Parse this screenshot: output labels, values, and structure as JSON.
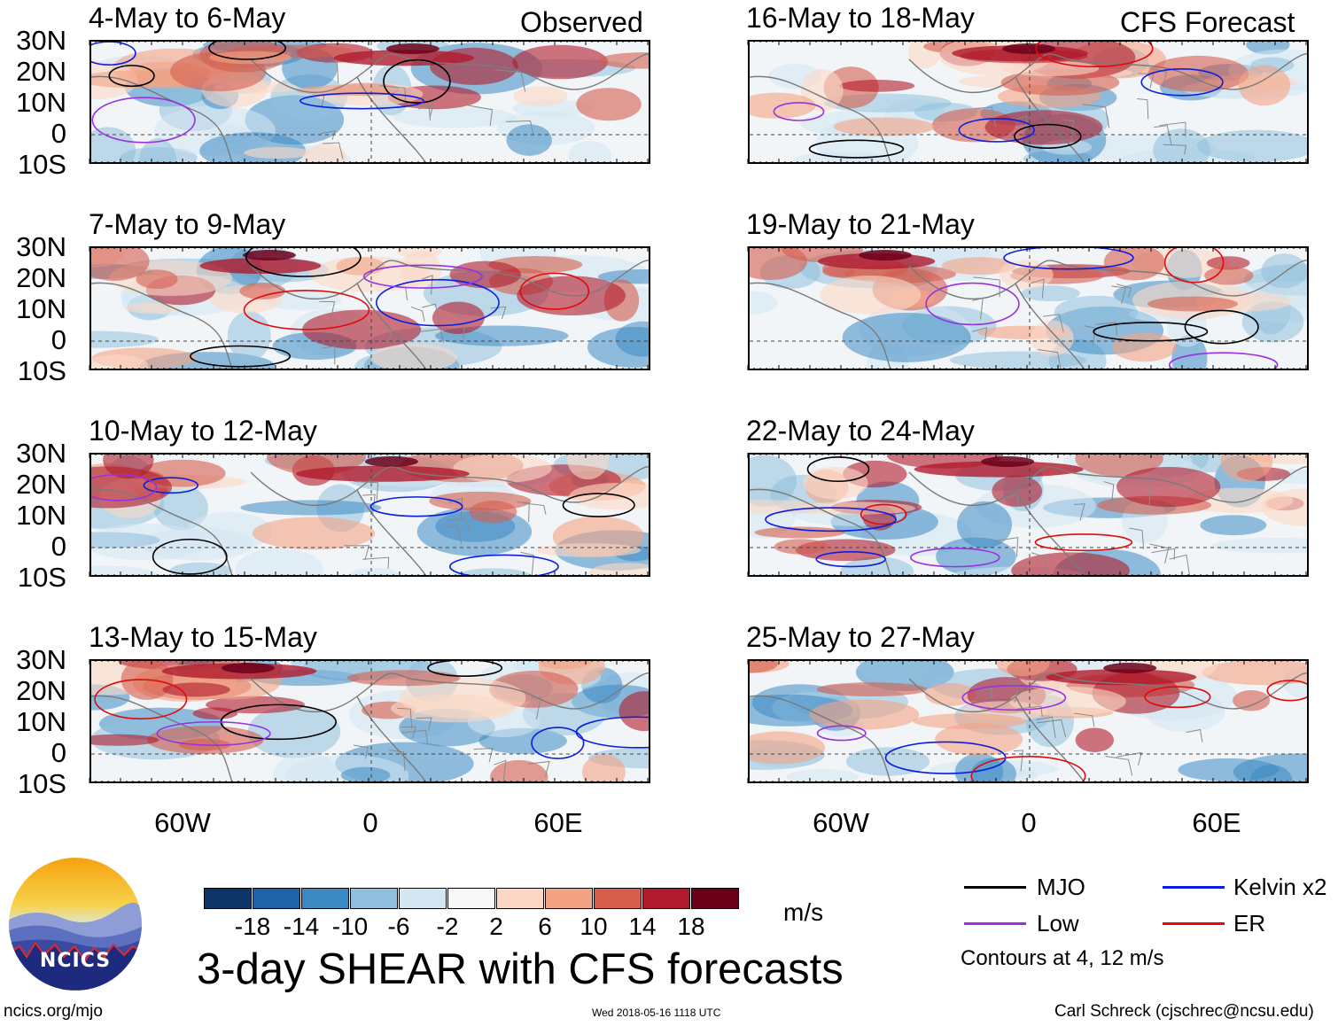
{
  "header": {
    "left_label": "Observed",
    "right_label": "CFS Forecast"
  },
  "panels": {
    "observed": [
      {
        "title": "4-May to 6-May"
      },
      {
        "title": "7-May to 9-May"
      },
      {
        "title": "10-May to 12-May"
      },
      {
        "title": "13-May to 15-May"
      }
    ],
    "forecast": [
      {
        "title": "16-May to 18-May"
      },
      {
        "title": "19-May to 21-May"
      },
      {
        "title": "22-May to 24-May"
      },
      {
        "title": "25-May to 27-May"
      }
    ]
  },
  "axes": {
    "lat_labels": [
      "30N",
      "20N",
      "10N",
      "0",
      "10S"
    ],
    "lon_labels": [
      "60W",
      "0",
      "60E"
    ]
  },
  "colorbar": {
    "labels": [
      "-18",
      "-14",
      "-10",
      "-6",
      "-2",
      "2",
      "6",
      "10",
      "14",
      "18"
    ],
    "colors": [
      "#0d3567",
      "#1f63a7",
      "#3d8ac2",
      "#8fbfdd",
      "#d4e6f2",
      "#f8f8f8",
      "#fcd8c4",
      "#f3a383",
      "#d55e4d",
      "#b01a2c",
      "#6b0019"
    ],
    "units": "m/s"
  },
  "title": "3-day SHEAR with CFS forecasts",
  "legend": {
    "items": [
      {
        "label": "MJO",
        "color": "#000000"
      },
      {
        "label": "Kelvin x2",
        "color": "#0a1ee0"
      },
      {
        "label": "Low",
        "color": "#9a30e0"
      },
      {
        "label": "ER",
        "color": "#e00a0a"
      }
    ],
    "note": "Contours at 4, 12 m/s"
  },
  "footer": {
    "url": "ncics.org/mjo",
    "timestamp": "Wed 2018-05-16 1118 UTC",
    "credit": "Carl Schreck (cjschrec@ncsu.edu)"
  },
  "logo": {
    "text": "NCICS"
  }
}
